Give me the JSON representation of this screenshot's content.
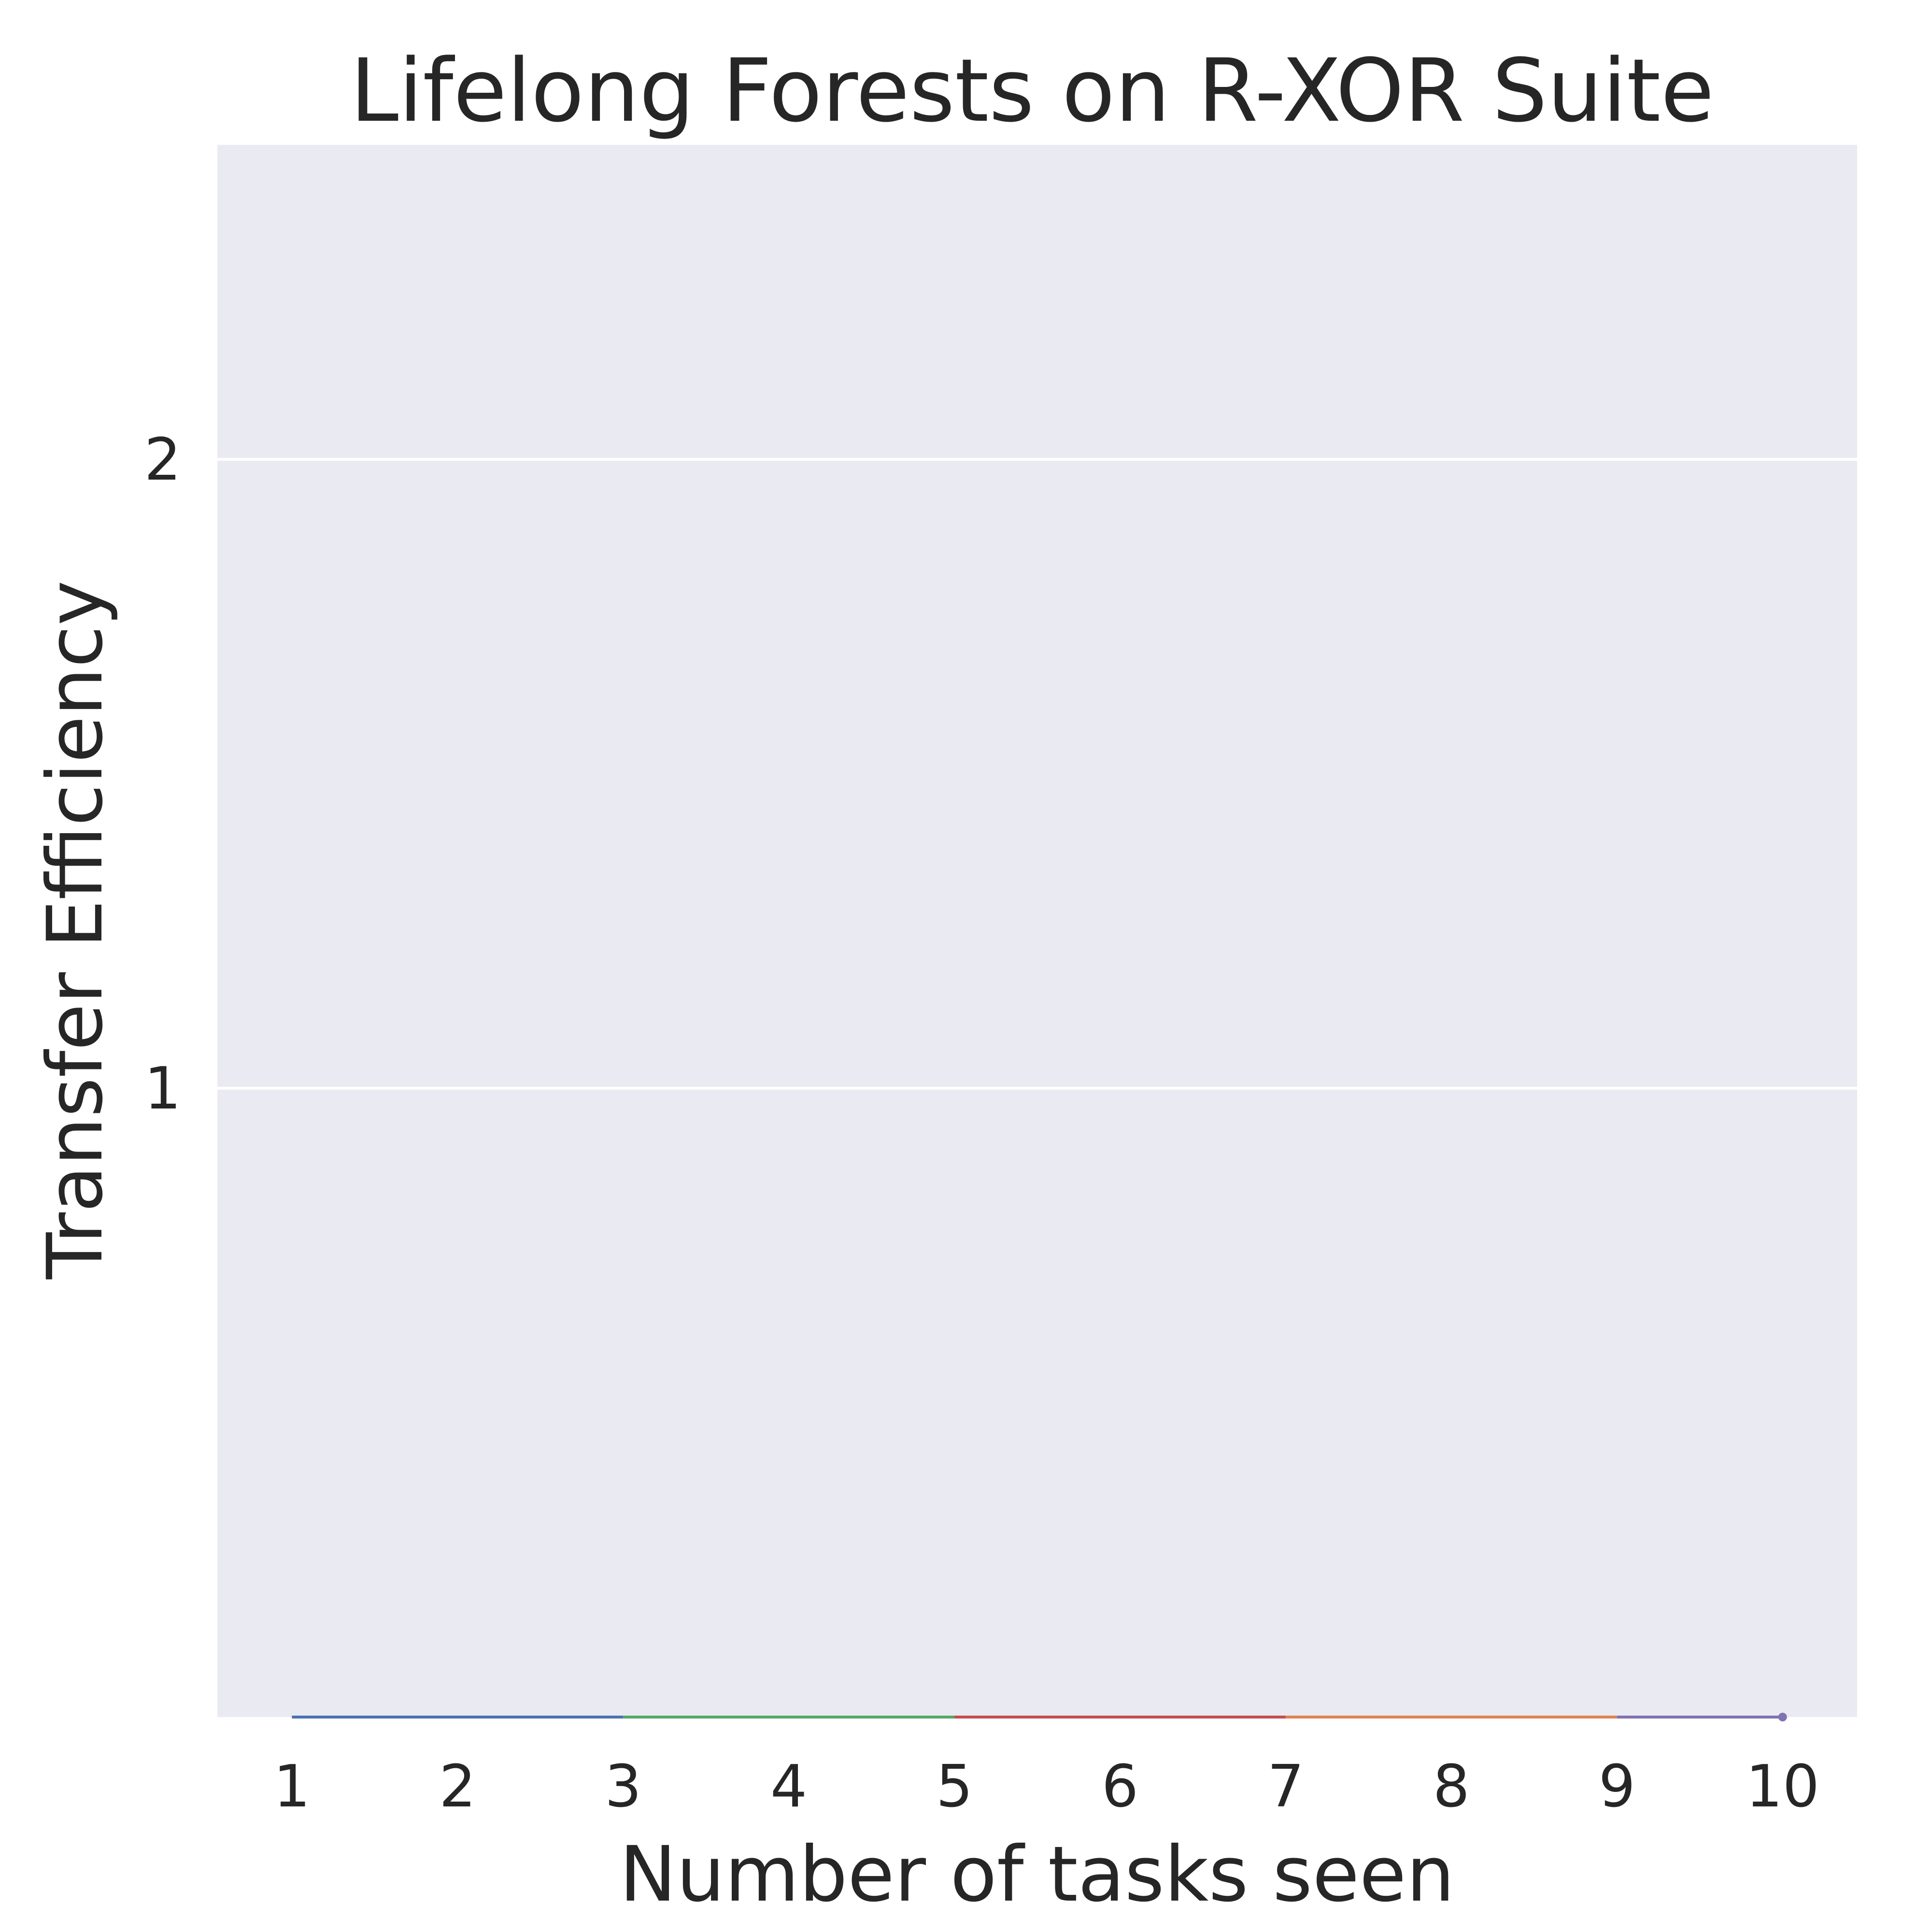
{
  "chart_data": {
    "type": "line",
    "title": "Lifelong Forests on R-XOR Suite",
    "xlabel": "Number of tasks seen",
    "ylabel": "Transfer Efficiency",
    "x": [
      1,
      2,
      3,
      4,
      5,
      6,
      7,
      8,
      9,
      10
    ],
    "x_tick_labels": [
      "1",
      "2",
      "3",
      "4",
      "5",
      "6",
      "7",
      "8",
      "9",
      "10"
    ],
    "y_ticks": [
      1,
      2
    ],
    "y_tick_labels": [
      "1",
      "2"
    ],
    "ylim": [
      0,
      2.5
    ],
    "xlim": [
      0.55,
      10.45
    ],
    "grid": true,
    "background_color": "#eaeaf2",
    "grid_color": "#ffffff",
    "series": [
      {
        "color": "#4c72b0",
        "x": [
          1,
          2,
          3
        ],
        "values": [
          0,
          0,
          0
        ]
      },
      {
        "color": "#55a868",
        "x": [
          3,
          4,
          5
        ],
        "values": [
          0,
          0,
          0
        ]
      },
      {
        "color": "#c44e52",
        "x": [
          5,
          6,
          7
        ],
        "values": [
          0,
          0,
          0
        ]
      },
      {
        "color": "#dd8452",
        "x": [
          7,
          8,
          9
        ],
        "values": [
          0,
          0,
          0
        ]
      },
      {
        "color": "#8172b2",
        "x": [
          9,
          10
        ],
        "values": [
          0,
          0
        ]
      }
    ]
  }
}
